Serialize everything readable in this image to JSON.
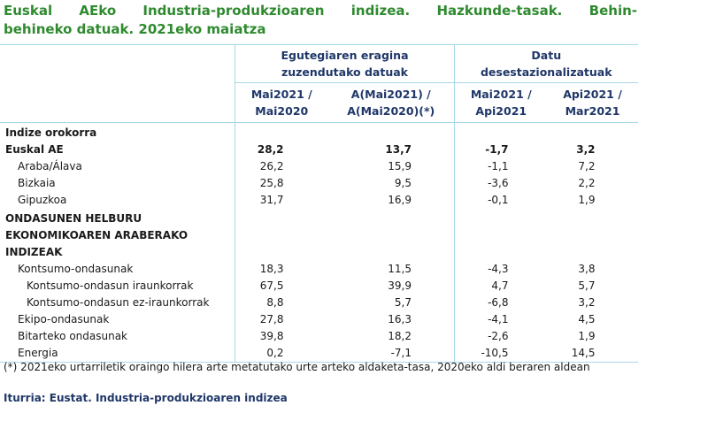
{
  "title": [
    "Euskal AEko Industria-produkzioaren indizea. Hazkunde-tasak. Behin-",
    "behineko datuak. 2021eko maiatza"
  ],
  "table": {
    "group_headers": [
      [
        "Egutegiaren eragina",
        "zuzendutako datuak"
      ],
      [
        "Datu",
        "desestazionalizatuak"
      ]
    ],
    "column_headers": [
      [
        "Mai2021 /",
        "Mai2020"
      ],
      [
        "A(Mai2021) /",
        "A(Mai2020)(*)"
      ],
      [
        "Mai2021 /",
        "Api2021"
      ],
      [
        "Api2021 /",
        "Mar2021"
      ]
    ],
    "rows": [
      [
        "Indize orokorra"
      ],
      [
        "Euskal AE",
        "28,2",
        "13,7",
        "-1,7",
        "3,2"
      ],
      [
        "Araba/Álava",
        "26,2",
        "15,9",
        "-1,1",
        "7,2"
      ],
      [
        "Bizkaia",
        "25,8",
        "9,5",
        "-3,6",
        "2,2"
      ],
      [
        "Gipuzkoa",
        "31,7",
        "16,9",
        "-0,1",
        "1,9"
      ],
      [
        "ONDASUNEN HELBURU EKONOMIKOAREN ARABERAKO INDIZEAK"
      ],
      [
        "Kontsumo-ondasunak",
        "18,3",
        "11,5",
        "-4,3",
        "3,8"
      ],
      [
        "Kontsumo-ondasun iraunkorrak",
        "67,5",
        "39,9",
        "4,7",
        "5,7"
      ],
      [
        "Kontsumo-ondasun ez-iraunkorrak",
        "8,8",
        "5,7",
        "-6,8",
        "3,2"
      ],
      [
        "Ekipo-ondasunak",
        "27,8",
        "16,3",
        "-4,1",
        "4,5"
      ],
      [
        "Bitarteko ondasunak",
        "39,8",
        "18,2",
        "-2,6",
        "1,9"
      ],
      [
        "Energia",
        "0,2",
        "-7,1",
        "-10,5",
        "14,5"
      ]
    ]
  },
  "footnote": "(*) 2021eko urtarriletik oraingo hilera arte metatutako urte arteko aldaketa-tasa, 2020eko aldi beraren aldean",
  "source": "Iturria: Eustat. Industria-produkzioaren indizea"
}
